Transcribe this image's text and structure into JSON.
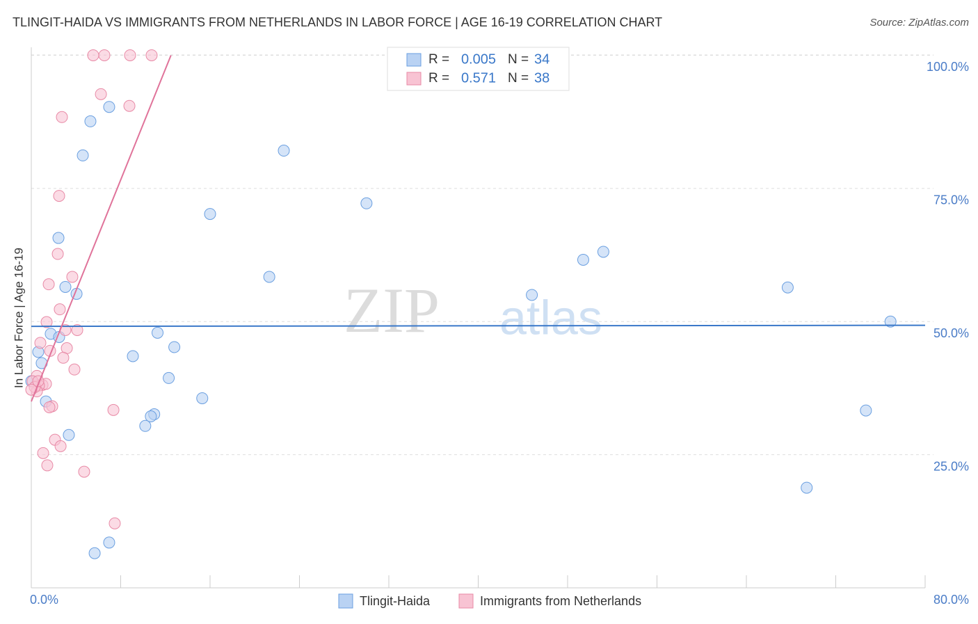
{
  "chart_data": {
    "type": "scatter",
    "title": "TLINGIT-HAIDA VS IMMIGRANTS FROM NETHERLANDS IN LABOR FORCE | AGE 16-19 CORRELATION CHART",
    "source": "Source: ZipAtlas.com",
    "y_label": "In Labor Force | Age 16-19",
    "watermark": [
      "ZIP",
      "atlas"
    ],
    "xlim": [
      0,
      80
    ],
    "ylim": [
      0,
      101.5
    ],
    "xticks": [
      {
        "value": 0,
        "label": "0.0%"
      },
      {
        "value": 80,
        "label": "80.0%"
      }
    ],
    "xminorticks": [
      8,
      16,
      24,
      32,
      40,
      48,
      56,
      64,
      72
    ],
    "yticks": [
      {
        "value": 25,
        "label": "25.0%"
      },
      {
        "value": 50,
        "label": "50.0%"
      },
      {
        "value": 75,
        "label": "75.0%"
      },
      {
        "value": 100,
        "label": "100.0%"
      }
    ],
    "grid": true,
    "stat_labels": [
      "R =",
      "N ="
    ],
    "series": [
      {
        "name": "Tlingit-Haida",
        "color": "#6a9fe0",
        "fill": "#b9d2f3",
        "line_color": "#3a78c9",
        "r": 0.005,
        "n": 34,
        "trend": {
          "x": [
            0,
            80
          ],
          "y": [
            49.1,
            49.3
          ]
        },
        "x": [
          6.97,
          5.29,
          4.61,
          22.6,
          16.0,
          30.0,
          2.43,
          21.3,
          49.4,
          51.2,
          3.05,
          4.05,
          44.8,
          67.7,
          76.9,
          11.3,
          12.8,
          1.74,
          2.49,
          0.62,
          9.09,
          0.93,
          12.3,
          15.3,
          1.31,
          11.0,
          10.7,
          10.2,
          3.36,
          74.7,
          69.4,
          6.97,
          5.67,
          0.0
        ],
        "values": [
          90.3,
          87.6,
          81.2,
          82.1,
          70.2,
          72.2,
          65.7,
          58.4,
          61.6,
          63.1,
          56.5,
          55.2,
          55.0,
          56.4,
          50.0,
          47.9,
          45.2,
          47.7,
          47.1,
          44.3,
          43.5,
          42.2,
          39.4,
          35.6,
          35.0,
          32.6,
          32.2,
          30.4,
          28.7,
          33.3,
          18.8,
          8.5,
          6.5,
          38.8
        ]
      },
      {
        "name": "Immigrants from Netherlands",
        "color": "#e88aa6",
        "fill": "#f8c3d3",
        "line_color": "#e0739a",
        "r": 0.571,
        "n": 38,
        "trend": {
          "x": [
            0,
            12.5
          ],
          "y": [
            35.0,
            100
          ]
        },
        "x": [
          5.54,
          6.54,
          8.84,
          10.77,
          6.23,
          8.78,
          2.74,
          2.49,
          2.37,
          1.56,
          3.67,
          2.55,
          1.37,
          3.05,
          4.11,
          0.81,
          3.18,
          1.68,
          2.86,
          3.86,
          0.5,
          1.0,
          1.31,
          0.68,
          0.12,
          0.5,
          0.31,
          1.87,
          1.62,
          7.35,
          2.12,
          2.62,
          1.06,
          1.43,
          4.73,
          7.47,
          0.62,
          0.0
        ],
        "values": [
          100,
          100,
          100,
          100,
          92.7,
          90.5,
          88.4,
          73.6,
          62.7,
          57.0,
          58.4,
          52.3,
          49.9,
          48.4,
          48.4,
          46.0,
          45.0,
          44.5,
          43.2,
          41.0,
          39.8,
          38.1,
          38.3,
          38.0,
          38.8,
          36.9,
          37.7,
          34.1,
          33.9,
          33.4,
          27.8,
          26.6,
          25.3,
          23.0,
          21.8,
          12.1,
          38.8,
          37.2
        ]
      }
    ]
  }
}
